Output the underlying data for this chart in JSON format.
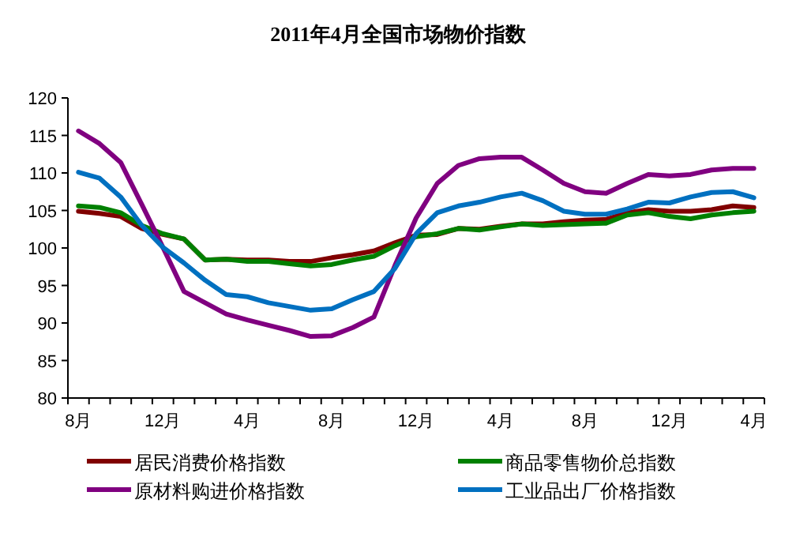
{
  "chart_data": {
    "type": "line",
    "title": "2011年4月全国市场物价指数",
    "categories": [
      "8月",
      null,
      null,
      null,
      "12月",
      null,
      null,
      null,
      "4月",
      null,
      null,
      null,
      "8月",
      null,
      null,
      null,
      "12月",
      null,
      null,
      null,
      "4月",
      null,
      null,
      null,
      "8月",
      null,
      null,
      null,
      "12月",
      null,
      null,
      null,
      "4月"
    ],
    "ylim": [
      80,
      120
    ],
    "yticks": [
      80,
      85,
      90,
      95,
      100,
      105,
      110,
      115,
      120
    ],
    "grid": false,
    "legend": "bottom",
    "marker": "none",
    "line_style": "solid",
    "series": [
      {
        "name": "居民消费价格指数",
        "color": "#800000",
        "values": [
          104.9,
          104.6,
          104.2,
          102.6,
          101.8,
          101.2,
          98.4,
          98.5,
          98.4,
          98.4,
          98.2,
          98.2,
          98.7,
          99.1,
          99.6,
          100.7,
          101.7,
          101.8,
          102.6,
          102.5,
          102.9,
          103.2,
          103.2,
          103.5,
          103.7,
          103.8,
          104.7,
          105.1,
          104.9,
          104.9,
          105.1,
          105.6,
          105.4
        ]
      },
      {
        "name": "商品零售物价总指数",
        "color": "#008000",
        "values": [
          105.6,
          105.4,
          104.7,
          103.0,
          101.9,
          101.2,
          98.4,
          98.5,
          98.2,
          98.2,
          97.9,
          97.6,
          97.8,
          98.4,
          98.9,
          100.3,
          101.5,
          101.9,
          102.6,
          102.4,
          102.8,
          103.2,
          103.0,
          103.1,
          103.2,
          103.3,
          104.4,
          104.7,
          104.2,
          103.9,
          104.4,
          104.7,
          104.9
        ]
      },
      {
        "name": "原材料购进价格指数",
        "color": "#800080",
        "values": [
          115.6,
          113.9,
          111.4,
          105.8,
          100.1,
          94.2,
          92.7,
          91.2,
          90.4,
          89.7,
          89.0,
          88.2,
          88.3,
          89.4,
          90.8,
          97.7,
          104.0,
          108.6,
          111.0,
          111.9,
          112.1,
          112.1,
          110.4,
          108.6,
          107.5,
          107.3,
          108.6,
          109.8,
          109.6,
          109.8,
          110.4,
          110.6,
          110.6
        ]
      },
      {
        "name": "工业品出厂价格指数",
        "color": "#0070c0",
        "values": [
          110.1,
          109.3,
          106.8,
          103.0,
          100.1,
          98.0,
          95.7,
          93.8,
          93.5,
          92.7,
          92.2,
          91.7,
          91.9,
          93.1,
          94.2,
          97.3,
          101.9,
          104.7,
          105.6,
          106.1,
          106.8,
          107.3,
          106.3,
          104.9,
          104.5,
          104.5,
          105.2,
          106.1,
          106.0,
          106.8,
          107.4,
          107.5,
          106.7
        ]
      }
    ]
  }
}
